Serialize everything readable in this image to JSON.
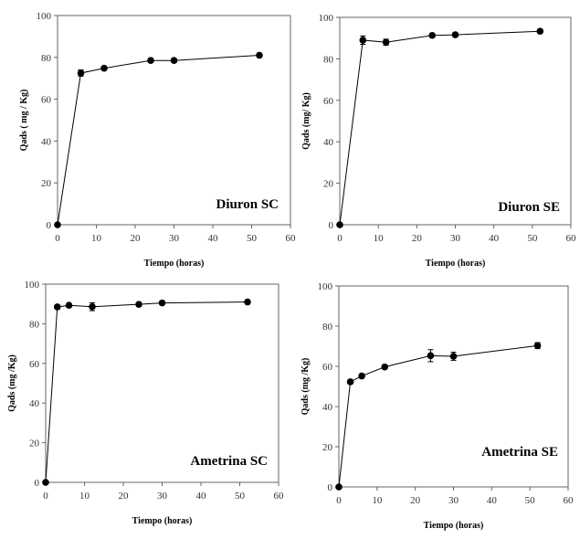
{
  "chart_data": [
    {
      "type": "line",
      "annotation": "Diuron SC",
      "xlabel": "Tiempo (horas)",
      "ylabel": "Qads ( mg / Kg)",
      "xlim": [
        0,
        60
      ],
      "ylim": [
        0,
        100
      ],
      "xticks": [
        0,
        10,
        20,
        30,
        40,
        50,
        60
      ],
      "yticks": [
        0,
        20,
        40,
        60,
        80,
        100
      ],
      "grid": false,
      "x": [
        0,
        6,
        12,
        24,
        30,
        52
      ],
      "y": [
        0,
        72.5,
        74.8,
        78.5,
        78.5,
        81
      ],
      "error": [
        0,
        1.5,
        1,
        1,
        1,
        1
      ]
    },
    {
      "type": "line",
      "annotation": "Diuron SE",
      "xlabel": "Tiempo (horas)",
      "ylabel": "Qads (mg/ Kg)",
      "xlim": [
        0,
        60
      ],
      "ylim": [
        0,
        100
      ],
      "xticks": [
        0,
        10,
        20,
        30,
        40,
        50,
        60
      ],
      "yticks": [
        0,
        20,
        40,
        60,
        80,
        100
      ],
      "grid": false,
      "x": [
        0,
        6,
        12,
        24,
        30,
        52
      ],
      "y": [
        0,
        89,
        88,
        91.3,
        91.6,
        93.3
      ],
      "error": [
        0,
        2,
        1.5,
        1,
        1,
        1
      ]
    },
    {
      "type": "line",
      "annotation": "Ametrina SC",
      "xlabel": "Tiempo (horas)",
      "ylabel": "Qads (mg /Kg)",
      "xlim": [
        0,
        60
      ],
      "ylim": [
        0,
        100
      ],
      "xticks": [
        0,
        10,
        20,
        30,
        40,
        50,
        60
      ],
      "yticks": [
        0,
        20,
        40,
        60,
        80,
        100
      ],
      "grid": false,
      "x": [
        0,
        3,
        6,
        12,
        24,
        30,
        52
      ],
      "y": [
        0,
        88.5,
        89.3,
        88.6,
        89.8,
        90.5,
        91
      ],
      "error": [
        0,
        1,
        1,
        2,
        1,
        1,
        1
      ]
    },
    {
      "type": "line",
      "annotation": "Ametrina SE",
      "xlabel": "Tiempo (horas)",
      "ylabel": "Qads (mg /Kg)",
      "xlim": [
        0,
        60
      ],
      "ylim": [
        0,
        100
      ],
      "xticks": [
        0,
        10,
        20,
        30,
        40,
        50,
        60
      ],
      "yticks": [
        0,
        20,
        40,
        60,
        80,
        100
      ],
      "grid": false,
      "x": [
        0,
        3,
        6,
        12,
        24,
        30,
        52
      ],
      "y": [
        0,
        52.3,
        55.2,
        59.7,
        65.3,
        65,
        70.3
      ],
      "error": [
        0,
        1,
        1,
        1,
        3,
        2,
        1.5
      ]
    }
  ]
}
